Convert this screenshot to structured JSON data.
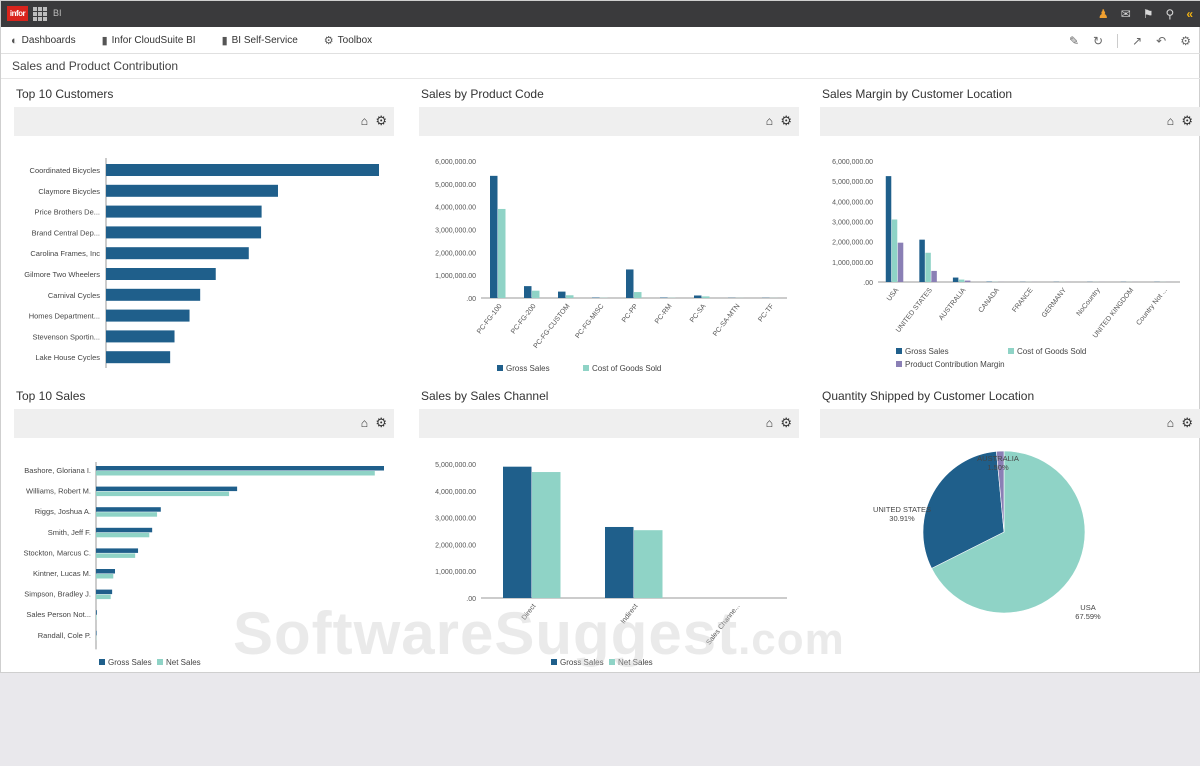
{
  "topbar": {
    "logo_text": "infor",
    "app_label": "BI",
    "icons": [
      "user-icon",
      "message-icon",
      "bookmark-icon",
      "search-icon",
      "collapse-icon"
    ]
  },
  "nav": {
    "items": [
      {
        "label": "Dashboards",
        "icon": "dashboard-icon"
      },
      {
        "label": "Infor CloudSuite BI",
        "icon": "bar-chart-icon"
      },
      {
        "label": "BI Self-Service",
        "icon": "bar-chart-icon"
      },
      {
        "label": "Toolbox",
        "icon": "gears-icon"
      }
    ]
  },
  "toolbar_icons": [
    "edit-icon",
    "refresh-icon",
    "export-icon",
    "undo-icon",
    "settings-icon"
  ],
  "page_title": "Sales and Product Contribution",
  "colors": {
    "dark_blue": "#1f5f8b",
    "teal": "#8fd3c6",
    "purple": "#8a7fb5",
    "topbar": "#3a3a3c"
  },
  "panels": {
    "top_customers": {
      "title": "Top 10 Customers"
    },
    "sales_product": {
      "title": "Sales by Product Code"
    },
    "margin_location": {
      "title": "Sales Margin by Customer Location"
    },
    "top_sales": {
      "title": "Top 10 Sales"
    },
    "sales_channel": {
      "title": "Sales by Sales Channel"
    },
    "qty_location": {
      "title": "Quantity Shipped by Customer Location"
    }
  },
  "watermark": {
    "main": "SoftwareSuggest",
    "suffix": ".com"
  },
  "chart_data": [
    {
      "id": "top_customers",
      "type": "bar",
      "orientation": "horizontal",
      "categories": [
        "Coordinated Bicycles",
        "Claymore Bicycles",
        "Price Brothers De...",
        "Brand Central Dep...",
        "Carolina Frames, Inc",
        "Gilmore Two Wheelers",
        "Carnival Cycles",
        "Homes Department...",
        "Stevenson Sportin...",
        "Lake House Cycles"
      ],
      "values": [
        1000,
        630,
        570,
        568,
        523,
        402,
        345,
        306,
        251,
        235
      ]
    },
    {
      "id": "sales_product",
      "type": "bar",
      "categories": [
        "PC-FG-100",
        "PC-FG-200",
        "PC-FG-CUSTOM",
        "PC-FG-MISC",
        "PC-PP",
        "PC-RM",
        "PC-SA",
        "PC-SA-MTN",
        "PC-TF"
      ],
      "series": [
        {
          "name": "Gross Sales",
          "values": [
            5350000,
            520000,
            280000,
            20000,
            1250000,
            20000,
            110000,
            10000,
            10000
          ]
        },
        {
          "name": "Cost of Goods Sold",
          "values": [
            3900000,
            320000,
            120000,
            10000,
            260000,
            10000,
            70000,
            5000,
            5000
          ]
        }
      ],
      "y_ticks": [
        "6,000,000.00",
        "5,000,000.00",
        "4,000,000.00",
        "3,000,000.00",
        "2,000,000.00",
        "1,000,000.00",
        ".00"
      ],
      "ylim": [
        0,
        6000000
      ]
    },
    {
      "id": "margin_location",
      "type": "bar",
      "categories": [
        "USA",
        "UNITED STATES",
        "AUSTRALIA",
        "CANADA",
        "FRANCE",
        "GERMANY",
        "NoCountry",
        "UNITED KINGDOM",
        "Country Not ..."
      ],
      "series": [
        {
          "name": "Gross Sales",
          "values": [
            5250000,
            2100000,
            220000,
            20000,
            10000,
            10000,
            10000,
            10000,
            10000
          ]
        },
        {
          "name": "Cost of Goods Sold",
          "values": [
            3100000,
            1450000,
            120000,
            10000,
            5000,
            5000,
            5000,
            5000,
            5000
          ]
        },
        {
          "name": "Product Contribution Margin",
          "values": [
            1950000,
            550000,
            70000,
            5000,
            3000,
            3000,
            3000,
            3000,
            3000
          ]
        }
      ],
      "y_ticks": [
        "6,000,000.00",
        "5,000,000.00",
        "4,000,000.00",
        "3,000,000.00",
        "2,000,000.00",
        "1,000,000.00",
        ".00"
      ],
      "ylim": [
        0,
        6000000
      ]
    },
    {
      "id": "top_sales",
      "type": "bar",
      "orientation": "horizontal",
      "categories": [
        "Bashore, Gloriana I.",
        "Williams, Robert M.",
        "Riggs, Joshua A.",
        "Smith, Jeff F.",
        "Stockton, Marcus C.",
        "Kintner, Lucas M.",
        "Simpson, Bradley J.",
        "Sales Person Not...",
        "Randall, Cole P."
      ],
      "series": [
        {
          "name": "Gross Sales",
          "values": [
            1000,
            490,
            225,
            195,
            146,
            66,
            56,
            3,
            2
          ]
        },
        {
          "name": "Net Sales",
          "values": [
            968,
            462,
            212,
            185,
            136,
            60,
            51,
            2,
            1
          ]
        }
      ]
    },
    {
      "id": "sales_channel",
      "type": "bar",
      "categories": [
        "Direct",
        "Indirect",
        "Sales Channe..."
      ],
      "series": [
        {
          "name": "Gross Sales",
          "values": [
            4900000,
            2650000,
            0
          ]
        },
        {
          "name": "Net Sales",
          "values": [
            4700000,
            2530000,
            0
          ]
        }
      ],
      "y_ticks": [
        "5,000,000.00",
        "4,000,000.00",
        "3,000,000.00",
        "2,000,000.00",
        "1,000,000.00",
        ".00"
      ],
      "ylim": [
        0,
        5000000
      ]
    },
    {
      "id": "qty_location",
      "type": "pie",
      "slices": [
        {
          "label": "USA",
          "pct_label": "67.59%",
          "value": 67.59
        },
        {
          "label": "UNITED STATES",
          "pct_label": "30.91%",
          "value": 30.91
        },
        {
          "label": "AUSTRALIA",
          "pct_label": "1.50%",
          "value": 1.5
        }
      ]
    }
  ]
}
